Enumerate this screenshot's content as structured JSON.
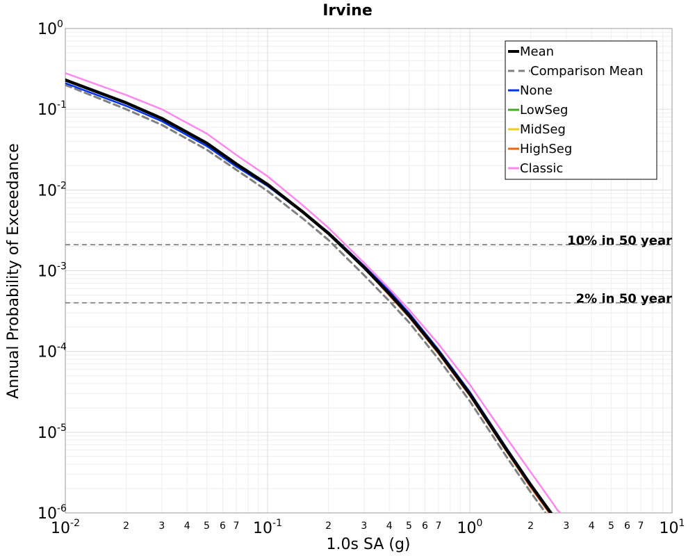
{
  "chart_data": {
    "type": "line",
    "title": "Irvine",
    "xlabel": "1.0s SA (g)",
    "ylabel": "Annual Probability of Exceedance",
    "xscale": "log",
    "yscale": "log",
    "xlim": [
      0.01,
      10
    ],
    "ylim": [
      1e-06,
      1
    ],
    "grid": true,
    "legend_position": "top-right",
    "x_major_ticks": [
      {
        "value": 0.01,
        "base": "10",
        "exp": "-2"
      },
      {
        "value": 0.1,
        "base": "10",
        "exp": "-1"
      },
      {
        "value": 1,
        "base": "10",
        "exp": "0"
      },
      {
        "value": 10,
        "base": "10",
        "exp": "1"
      }
    ],
    "x_minor_ticks": [
      {
        "value": 0.02,
        "label": "2"
      },
      {
        "value": 0.03,
        "label": "3"
      },
      {
        "value": 0.04,
        "label": "4"
      },
      {
        "value": 0.05,
        "label": "5"
      },
      {
        "value": 0.06,
        "label": "6"
      },
      {
        "value": 0.07,
        "label": "7"
      },
      {
        "value": 0.2,
        "label": "2"
      },
      {
        "value": 0.3,
        "label": "3"
      },
      {
        "value": 0.4,
        "label": "4"
      },
      {
        "value": 0.5,
        "label": "5"
      },
      {
        "value": 0.6,
        "label": "6"
      },
      {
        "value": 0.7,
        "label": "7"
      },
      {
        "value": 2,
        "label": "2"
      },
      {
        "value": 3,
        "label": "3"
      },
      {
        "value": 4,
        "label": "4"
      },
      {
        "value": 5,
        "label": "5"
      },
      {
        "value": 6,
        "label": "6"
      },
      {
        "value": 7,
        "label": "7"
      }
    ],
    "y_major_ticks": [
      {
        "value": 1,
        "base": "10",
        "exp": "0"
      },
      {
        "value": 0.1,
        "base": "10",
        "exp": "-1"
      },
      {
        "value": 0.01,
        "base": "10",
        "exp": "-2"
      },
      {
        "value": 0.001,
        "base": "10",
        "exp": "-3"
      },
      {
        "value": 0.0001,
        "base": "10",
        "exp": "-4"
      },
      {
        "value": 1e-05,
        "base": "10",
        "exp": "-5"
      },
      {
        "value": 1e-06,
        "base": "10",
        "exp": "-6"
      }
    ],
    "reference_lines": [
      {
        "label": "10% in 50 year",
        "y": 0.0021
      },
      {
        "label": "2% in 50 year",
        "y": 0.0004
      }
    ],
    "x": [
      0.01,
      0.02,
      0.03,
      0.05,
      0.07,
      0.1,
      0.15,
      0.2,
      0.3,
      0.4,
      0.5,
      0.7,
      1.0,
      1.5,
      2.0,
      2.5,
      2.6,
      2.7,
      3.0
    ],
    "series": [
      {
        "name": "Mean",
        "color": "#000000",
        "dash": "solid",
        "width": 4.5,
        "values": [
          0.23,
          0.12,
          0.077,
          0.038,
          0.021,
          0.0117,
          0.0053,
          0.0029,
          0.0011,
          0.00052,
          0.00028,
          9.92e-05,
          2.97e-05,
          6.38e-06,
          2.22e-06,
          1.02e-06,
          8.9e-07,
          null,
          null
        ]
      },
      {
        "name": "Comparison Mean",
        "color": "#808080",
        "dash": "dashed",
        "width": 3,
        "values": [
          0.2,
          0.1,
          0.064,
          0.0315,
          0.0178,
          0.0097,
          0.0044,
          0.0024,
          0.00088,
          0.00042,
          0.00023,
          8.06e-05,
          2.42e-05,
          5.2e-06,
          1.8e-06,
          8.3e-07,
          null,
          null,
          null
        ]
      },
      {
        "name": "None",
        "color": "#0033ee",
        "dash": "solid",
        "width": 2.5,
        "values": [
          0.21,
          0.11,
          0.071,
          0.035,
          0.0195,
          0.0112,
          0.0052,
          0.003,
          0.00115,
          0.00056,
          0.0003,
          0.000105,
          3.15e-05,
          6.7e-06,
          2.3e-06,
          1.05e-06,
          null,
          null,
          null
        ]
      },
      {
        "name": "LowSeg",
        "color": "#44aa22",
        "dash": "solid",
        "width": 2,
        "values": [
          0.225,
          0.118,
          0.076,
          0.0375,
          0.0208,
          0.0116,
          0.0053,
          0.0029,
          0.0011,
          0.00052,
          0.000279,
          9.85e-05,
          2.96e-05,
          6.35e-06,
          2.2e-06,
          1.01e-06,
          null,
          null,
          null
        ]
      },
      {
        "name": "MidSeg",
        "color": "#eecc22",
        "dash": "solid",
        "width": 2,
        "values": [
          0.225,
          0.118,
          0.076,
          0.0375,
          0.0208,
          0.0116,
          0.0053,
          0.0029,
          0.0011,
          0.00051,
          0.000275,
          9.7e-05,
          2.9e-05,
          6.2e-06,
          2.1e-06,
          9.8e-07,
          null,
          null,
          null
        ]
      },
      {
        "name": "HighSeg",
        "color": "#ee6611",
        "dash": "solid",
        "width": 2,
        "values": [
          0.225,
          0.118,
          0.076,
          0.0375,
          0.0208,
          0.0116,
          0.0053,
          0.0029,
          0.00108,
          0.00049,
          0.000265,
          9.35e-05,
          2.8e-05,
          6e-06,
          2.05e-06,
          9.5e-07,
          null,
          null,
          null
        ]
      },
      {
        "name": "Classic",
        "color": "#ff88ee",
        "dash": "solid",
        "width": 2.5,
        "values": [
          0.28,
          0.15,
          0.1,
          0.05,
          0.0272,
          0.0148,
          0.0064,
          0.0034,
          0.00125,
          0.0006,
          0.00033,
          0.000124,
          3.89e-05,
          8.9e-06,
          3.2e-06,
          1.46e-06,
          1.27e-06,
          1.1e-06,
          8.3e-07
        ]
      }
    ]
  }
}
